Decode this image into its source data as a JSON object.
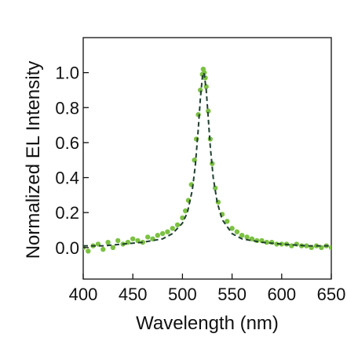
{
  "chart_data": {
    "type": "scatter",
    "xlabel": "Wavelength (nm)",
    "ylabel": "Normalized EL Intensity",
    "xlim": [
      400,
      650
    ],
    "ylim": [
      -0.18,
      1.2
    ],
    "x_ticks": [
      400,
      450,
      500,
      550,
      600,
      650
    ],
    "x_tick_labels": [
      "400",
      "450",
      "500",
      "550",
      "600",
      "650"
    ],
    "y_ticks": [
      0.0,
      0.2,
      0.4,
      0.6,
      0.8,
      1.0
    ],
    "y_tick_labels": [
      "0.0",
      "0.2",
      "0.4",
      "0.6",
      "0.8",
      "1.0"
    ],
    "grid": false,
    "legend": "none",
    "series": [
      {
        "kind": "scatter",
        "color": "#7cc142",
        "x": [
          400,
          405,
          410,
          415,
          420,
          425,
          430,
          435,
          440,
          445,
          450,
          455,
          460,
          465,
          470,
          475,
          480,
          485,
          490,
          495,
          500,
          503,
          506,
          509,
          512,
          514,
          516,
          518,
          520,
          521,
          522,
          523,
          524,
          526,
          528,
          530,
          533,
          536,
          540,
          545,
          550,
          555,
          560,
          565,
          570,
          575,
          580,
          585,
          590,
          595,
          600,
          605,
          610,
          615,
          620,
          625,
          630,
          635,
          640,
          645,
          650
        ],
        "y": [
          0.0,
          -0.02,
          0.01,
          0.02,
          -0.01,
          0.03,
          0.0,
          0.04,
          0.02,
          0.03,
          0.05,
          0.04,
          0.03,
          0.06,
          0.05,
          0.07,
          0.08,
          0.09,
          0.11,
          0.13,
          0.17,
          0.21,
          0.27,
          0.36,
          0.5,
          0.62,
          0.76,
          0.9,
          0.99,
          1.02,
          1.0,
          0.97,
          0.92,
          0.78,
          0.62,
          0.48,
          0.34,
          0.26,
          0.19,
          0.15,
          0.11,
          0.09,
          0.07,
          0.06,
          0.05,
          0.04,
          0.04,
          0.03,
          0.03,
          0.02,
          0.02,
          0.02,
          0.01,
          0.02,
          0.01,
          0.01,
          0.0,
          0.01,
          0.0,
          0.01,
          0.0
        ]
      },
      {
        "kind": "fit-line",
        "color": "#1f3f2f",
        "dashed": true,
        "x": [
          400,
          420,
          440,
          460,
          480,
          490,
          500,
          505,
          510,
          513,
          516,
          518,
          520,
          521,
          522,
          524,
          526,
          528,
          531,
          535,
          540,
          550,
          560,
          580,
          600,
          625,
          650
        ],
        "y": [
          0.01,
          0.01,
          0.02,
          0.03,
          0.05,
          0.08,
          0.14,
          0.2,
          0.33,
          0.47,
          0.68,
          0.85,
          0.97,
          1.0,
          0.99,
          0.9,
          0.74,
          0.58,
          0.4,
          0.26,
          0.16,
          0.08,
          0.05,
          0.03,
          0.02,
          0.01,
          0.01
        ]
      }
    ]
  }
}
